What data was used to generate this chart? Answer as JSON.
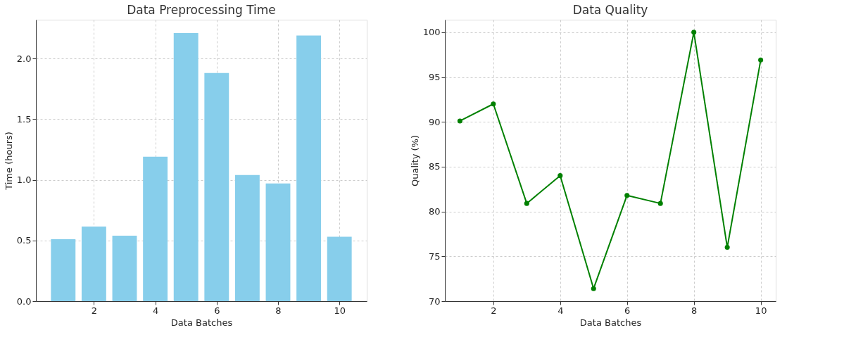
{
  "chart_data": [
    {
      "type": "bar",
      "title": "Data Preprocessing Time",
      "xlabel": "Data Batches",
      "ylabel": "Time (hours)",
      "x": [
        1,
        2,
        3,
        4,
        5,
        6,
        7,
        8,
        9,
        10
      ],
      "values": [
        0.51,
        0.615,
        0.54,
        1.19,
        2.21,
        1.88,
        1.04,
        0.97,
        2.19,
        0.53
      ],
      "color": "#87ceeb",
      "xlim": [
        0.11,
        10.89
      ],
      "xticks": [
        2,
        4,
        6,
        8,
        10
      ],
      "ylim": [
        0,
        2.32
      ],
      "yticks": [
        {
          "value": 0,
          "label": "0.0"
        },
        0.5,
        {
          "value": 1,
          "label": "1.0"
        },
        1.5,
        {
          "value": 2,
          "label": "2.0"
        }
      ],
      "grid": true
    },
    {
      "type": "line",
      "title": "Data Quality",
      "xlabel": "Data Batches",
      "ylabel": "Quality (%)",
      "x": [
        1,
        2,
        3,
        4,
        5,
        6,
        7,
        8,
        9,
        10
      ],
      "values": [
        90.1,
        92.0,
        80.9,
        84.0,
        71.4,
        81.8,
        80.9,
        100.0,
        76.0,
        96.9
      ],
      "color": "#008000",
      "marker": "circle",
      "xlim": [
        0.55,
        10.45
      ],
      "xticks": [
        2,
        4,
        6,
        8,
        10
      ],
      "ylim": [
        70,
        101.4
      ],
      "yticks": [
        70,
        75,
        80,
        85,
        90,
        95,
        100
      ],
      "grid": true
    }
  ]
}
